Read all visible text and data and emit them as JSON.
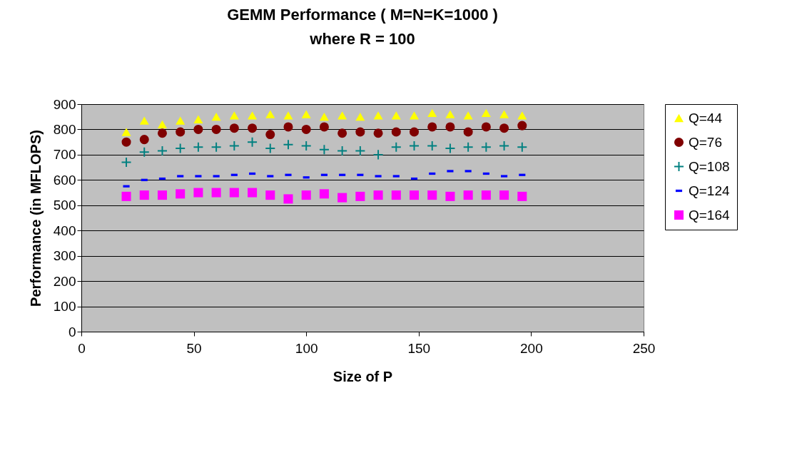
{
  "chart_data": {
    "type": "scatter",
    "title": "GEMM Performance ( M=N=K=1000 )",
    "subtitle": "where R = 100",
    "xlabel": "Size of P",
    "ylabel": "Performance (in MFLOPS)",
    "x": [
      20,
      28,
      36,
      44,
      52,
      60,
      68,
      76,
      84,
      92,
      100,
      108,
      116,
      124,
      132,
      140,
      148,
      156,
      164,
      172,
      180,
      188,
      196
    ],
    "series": [
      {
        "name": "Q=44",
        "color": "#ffff00",
        "marker": "triangle",
        "values": [
          790,
          835,
          820,
          835,
          840,
          850,
          855,
          855,
          860,
          855,
          860,
          850,
          855,
          850,
          855,
          855,
          855,
          865,
          860,
          855,
          865,
          860,
          855
        ]
      },
      {
        "name": "Q=76",
        "color": "#800000",
        "marker": "circle",
        "values": [
          750,
          760,
          785,
          790,
          800,
          800,
          805,
          805,
          780,
          810,
          800,
          810,
          785,
          790,
          785,
          790,
          790,
          810,
          810,
          790,
          810,
          805,
          815
        ]
      },
      {
        "name": "Q=108",
        "color": "#008080",
        "marker": "cross",
        "values": [
          670,
          710,
          715,
          725,
          730,
          730,
          735,
          750,
          725,
          740,
          735,
          720,
          715,
          715,
          700,
          730,
          735,
          735,
          725,
          730,
          730,
          735,
          730
        ]
      },
      {
        "name": "Q=124",
        "color": "#0000ff",
        "values": [
          575,
          600,
          605,
          615,
          615,
          615,
          620,
          625,
          615,
          620,
          610,
          620,
          620,
          620,
          615,
          615,
          605,
          625,
          635,
          635,
          625,
          615,
          620
        ]
      },
      {
        "name": "Q=164",
        "color": "#ff00ff",
        "marker": "square",
        "values": [
          535,
          540,
          540,
          545,
          550,
          550,
          550,
          550,
          540,
          525,
          540,
          545,
          530,
          535,
          540,
          540,
          540,
          540,
          535,
          540,
          540,
          540,
          535
        ]
      }
    ],
    "xlim": [
      0,
      250
    ],
    "xticks": [
      0,
      50,
      100,
      150,
      200,
      250
    ],
    "ylim": [
      0,
      900
    ],
    "yticks": [
      0,
      100,
      200,
      300,
      400,
      500,
      600,
      700,
      800,
      900
    ],
    "grid": "y",
    "legend": "right"
  }
}
